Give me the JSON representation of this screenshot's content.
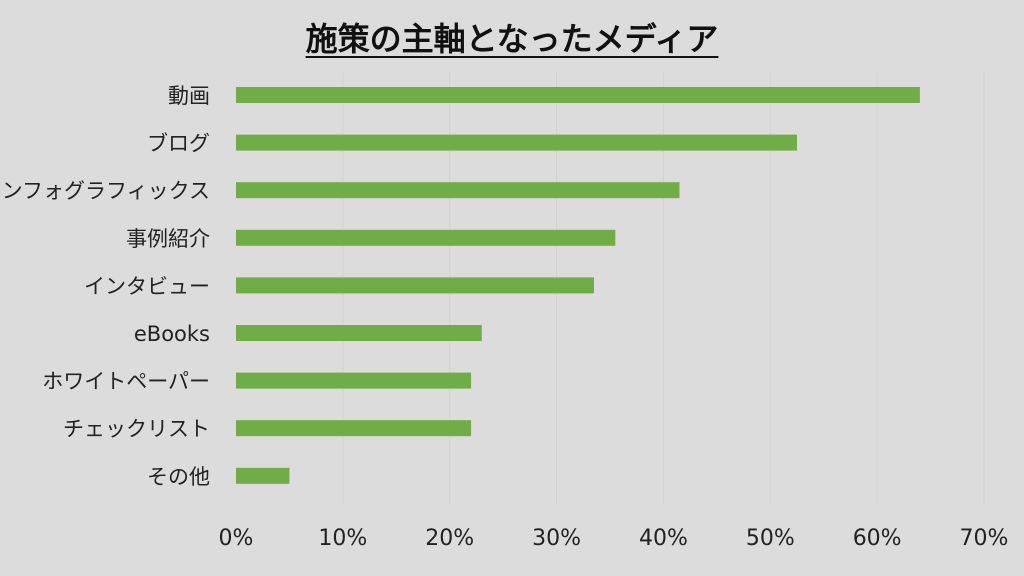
{
  "chart_data": {
    "type": "bar",
    "orientation": "horizontal",
    "title": "施策の主軸となったメディア",
    "categories": [
      "動画",
      "ブログ",
      "インフォグラフィックス",
      "事例紹介",
      "インタビュー",
      "eBooks",
      "ホワイトペーパー",
      "チェックリスト",
      "その他"
    ],
    "values": [
      64,
      52.5,
      41.5,
      35.5,
      33.5,
      23,
      22,
      22,
      5
    ],
    "xlim": [
      0,
      70
    ],
    "xticks": [
      "0%",
      "10%",
      "20%",
      "30%",
      "40%",
      "50%",
      "60%",
      "70%"
    ],
    "xtick_values": [
      0,
      10,
      20,
      30,
      40,
      50,
      60,
      70
    ],
    "unit": "%",
    "bar_color": "#70ad47",
    "grid": true,
    "legend": "none"
  }
}
